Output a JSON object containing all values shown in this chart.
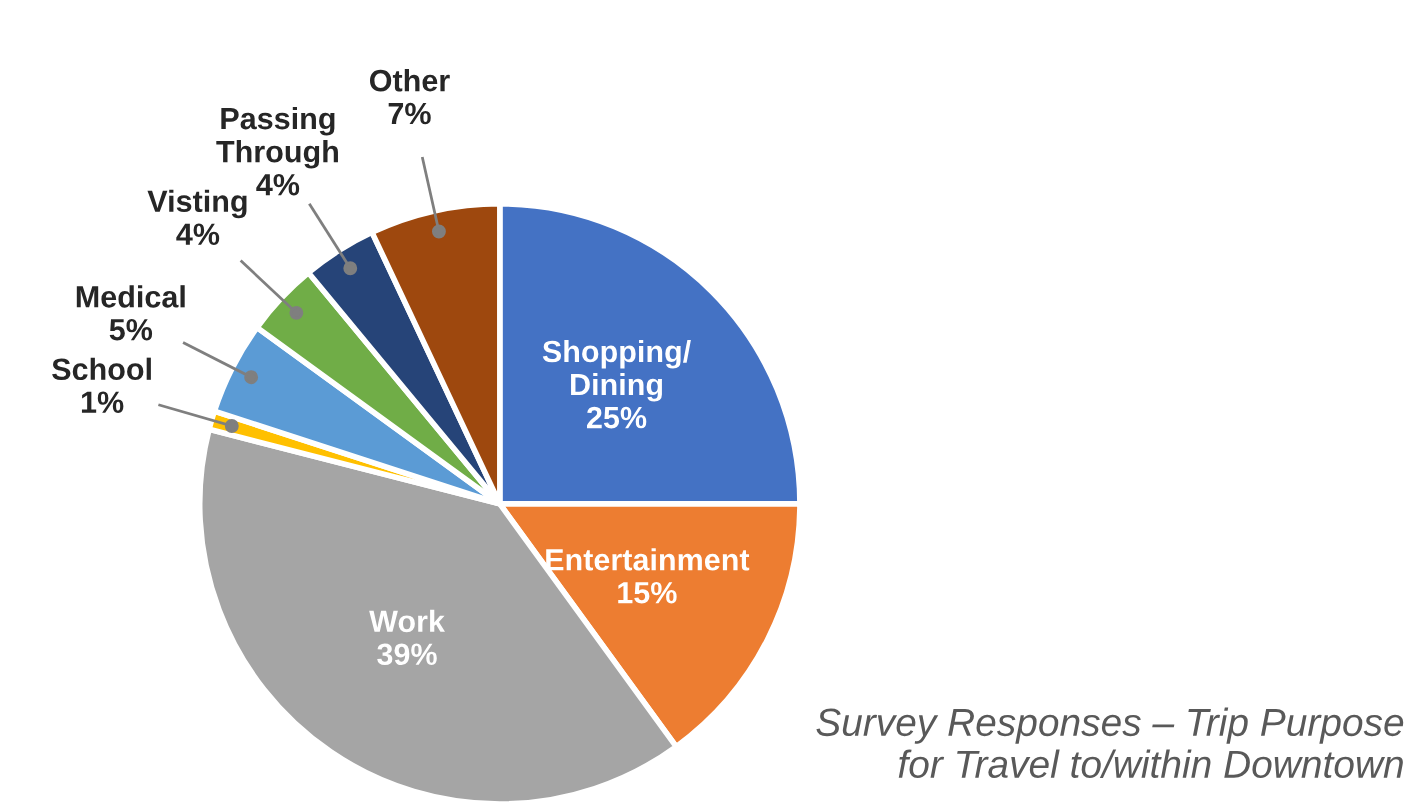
{
  "chart_data": {
    "type": "pie",
    "categories": [
      "Shopping/\nDining",
      "Entertainment",
      "Work",
      "School",
      "Medical",
      "Visting",
      "Passing\nThrough",
      "Other"
    ],
    "values": [
      25,
      15,
      39,
      1,
      5,
      4,
      4,
      7
    ],
    "colors": [
      "#4472c4",
      "#ed7d31",
      "#a5a5a5",
      "#ffc000",
      "#5b9bd5",
      "#70ad47",
      "#264478",
      "#9e480e"
    ],
    "value_labels": [
      "25%",
      "15%",
      "39%",
      "1%",
      "5%",
      "4%",
      "4%",
      "7%"
    ],
    "legend": false,
    "annotations": [
      "Survey Responses – Trip Purpose\nfor Travel to/within Downtown"
    ]
  }
}
